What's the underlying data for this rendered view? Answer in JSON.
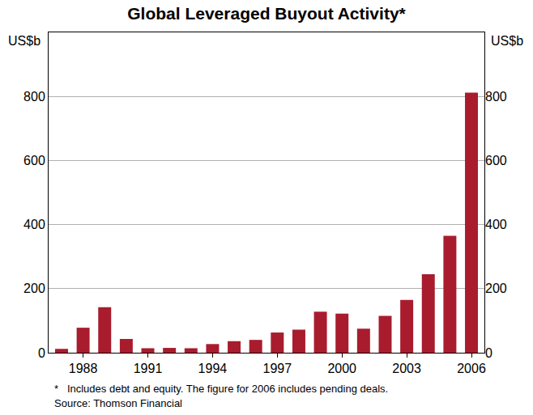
{
  "chart_data": {
    "type": "bar",
    "title": "Global Leveraged Buyout Activity*",
    "y_label": "US$b",
    "y2_label": "US$b",
    "notes": [
      "*   Includes debt and equity. The figure for 2006 includes pending deals.",
      "Source: Thomson Financial"
    ],
    "categories": [
      null,
      "1988",
      null,
      null,
      "1991",
      null,
      null,
      "1994",
      null,
      null,
      "1997",
      null,
      null,
      "2000",
      null,
      null,
      "2003",
      null,
      null,
      "2006"
    ],
    "values": [
      12,
      78,
      142,
      43,
      14,
      15,
      14,
      27,
      36,
      40,
      63,
      72,
      128,
      122,
      75,
      115,
      165,
      245,
      365,
      812
    ],
    "color": "#a81c2e",
    "ylim": [
      0,
      1000
    ],
    "yticks": [
      0,
      200,
      400,
      600,
      800
    ],
    "y2lim": [
      0,
      1000
    ],
    "y2ticks": [
      0,
      200,
      400,
      600,
      800
    ],
    "grid": true
  }
}
